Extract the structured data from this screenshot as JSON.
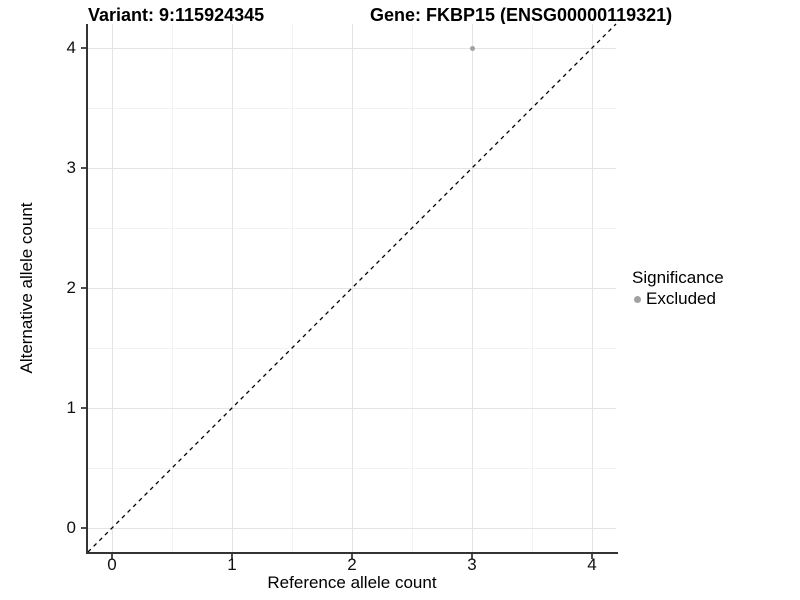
{
  "chart_data": {
    "type": "scatter",
    "titles": [
      "Variant: 9:115924345",
      "Gene: FKBP15 (ENSG00000119321)"
    ],
    "xlabel": "Reference allele count",
    "ylabel": "Alternative allele count",
    "xlim": [
      -0.2,
      4.2
    ],
    "ylim": [
      -0.2,
      4.2
    ],
    "xticks": [
      0,
      1,
      2,
      3,
      4
    ],
    "yticks": [
      0,
      1,
      2,
      3,
      4
    ],
    "xminor": [
      0.5,
      1.5,
      2.5,
      3.5
    ],
    "yminor": [
      0.5,
      1.5,
      2.5,
      3.5
    ],
    "grid": "major and minor gridlines, white background",
    "points": [
      {
        "x": 3,
        "y": 4,
        "series": "Excluded"
      }
    ],
    "reference_line": {
      "description": "identity line y = x",
      "style": "dashed",
      "x1": -0.2,
      "y1": -0.2,
      "x2": 4.2,
      "y2": 4.2
    },
    "legend": {
      "title": "Significance",
      "position": "right",
      "entries": [
        {
          "label": "Excluded",
          "color": "#a1a1a1"
        }
      ]
    }
  },
  "colors": {
    "point": "#a1a1a1",
    "axis_line": "#333333",
    "tick": "#4d4d4d",
    "grid_major": "#e4e4e4",
    "grid_minor": "#f2f2f2",
    "reference_line": "#000000",
    "background": "#ffffff"
  }
}
